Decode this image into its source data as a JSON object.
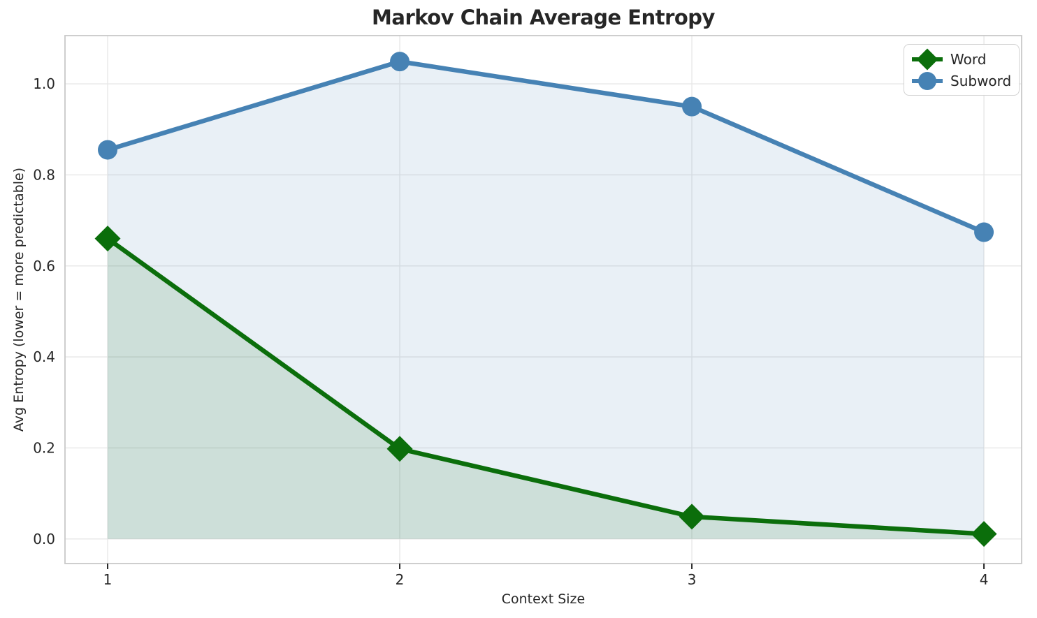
{
  "chart_data": {
    "type": "line",
    "title": "Markov Chain Average Entropy",
    "xlabel": "Context Size",
    "ylabel": "Avg Entropy (lower = more predictable)",
    "x": [
      1,
      2,
      3,
      4
    ],
    "series": [
      {
        "name": "Word",
        "values": [
          0.66,
          0.198,
          0.049,
          0.011
        ],
        "color": "#0b6e0b",
        "marker": "diamond",
        "fill_alpha": 0.12
      },
      {
        "name": "Subword",
        "values": [
          0.855,
          1.049,
          0.95,
          0.674
        ],
        "color": "#4682b4",
        "marker": "circle",
        "fill_alpha": 0.12
      }
    ],
    "xticks": [
      1,
      2,
      3,
      4
    ],
    "xtick_labels": [
      "1",
      "2",
      "3",
      "4"
    ],
    "yticks": [
      0,
      0.2,
      0.4,
      0.6,
      0.8,
      1.0
    ],
    "ytick_labels": [
      "0.0",
      "0.2",
      "0.4",
      "0.6",
      "0.8",
      "1.0"
    ],
    "xlim": [
      0.854,
      4.129
    ],
    "ylim": [
      -0.054,
      1.106
    ],
    "grid": true,
    "area_fill": true,
    "legend_position": "upper right"
  },
  "style": {
    "background_color": "#ffffff",
    "grid_color": "#e7e7e7",
    "spine_color": "#c9c9c9",
    "text_color": "#262626",
    "legend_border_color": "#d2d2d2"
  }
}
